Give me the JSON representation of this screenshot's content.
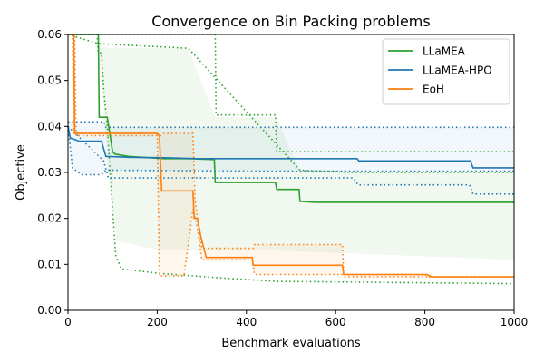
{
  "chart_data": {
    "type": "line",
    "title": "Convergence on Bin Packing problems",
    "xlabel": "Benchmark evaluations",
    "ylabel": "Objective",
    "xlim": [
      0,
      1000
    ],
    "ylim": [
      0,
      0.06
    ],
    "xticks": [
      "0",
      "200",
      "400",
      "600",
      "800",
      "1000"
    ],
    "yticks": [
      "0.00",
      "0.01",
      "0.02",
      "0.03",
      "0.04",
      "0.05",
      "0.06"
    ],
    "grid": false,
    "legend_position": "top-right",
    "series": [
      {
        "name": "LLaMEA",
        "color": "#2ca02c",
        "mean": [
          [
            0,
            0.06
          ],
          [
            68,
            0.06
          ],
          [
            70,
            0.042
          ],
          [
            88,
            0.042
          ],
          [
            100,
            0.0345
          ],
          [
            105,
            0.034
          ],
          [
            135,
            0.0335
          ],
          [
            215,
            0.033
          ],
          [
            270,
            0.033
          ],
          [
            328,
            0.0328
          ],
          [
            330,
            0.0278
          ],
          [
            465,
            0.0278
          ],
          [
            468,
            0.0263
          ],
          [
            518,
            0.0263
          ],
          [
            520,
            0.0237
          ],
          [
            555,
            0.0235
          ],
          [
            1000,
            0.0235
          ]
        ],
        "upper": [
          [
            0,
            0.06
          ],
          [
            330,
            0.06
          ],
          [
            332,
            0.0425
          ],
          [
            465,
            0.0425
          ],
          [
            468,
            0.0345
          ],
          [
            1000,
            0.0345
          ]
        ],
        "lower": [
          [
            0,
            0.06
          ],
          [
            65,
            0.06
          ],
          [
            68,
            0.056
          ],
          [
            75,
            0.056
          ],
          [
            80,
            0.048
          ],
          [
            88,
            0.04
          ],
          [
            100,
            0.022
          ],
          [
            107,
            0.012
          ],
          [
            120,
            0.009
          ],
          [
            210,
            0.008
          ],
          [
            350,
            0.007
          ],
          [
            470,
            0.0063
          ],
          [
            1000,
            0.0058
          ]
        ],
        "upper2": [
          [
            0,
            0.06
          ],
          [
            68,
            0.058
          ],
          [
            270,
            0.057
          ],
          [
            520,
            0.0305
          ],
          [
            640,
            0.03
          ],
          [
            1000,
            0.03
          ]
        ],
        "band": [
          [
            0,
            0.06
          ],
          [
            68,
            0.058
          ],
          [
            90,
            0.057
          ],
          [
            270,
            0.057
          ],
          [
            330,
            0.042
          ],
          [
            465,
            0.042
          ],
          [
            520,
            0.0305
          ],
          [
            1000,
            0.03
          ]
        ],
        "band_low": [
          [
            0,
            0.06
          ],
          [
            68,
            0.058
          ],
          [
            90,
            0.03
          ],
          [
            110,
            0.015
          ],
          [
            210,
            0.013
          ],
          [
            350,
            0.013
          ],
          [
            470,
            0.013
          ],
          [
            1000,
            0.011
          ]
        ]
      },
      {
        "name": "LLaMEA-HPO",
        "color": "#1f77b4",
        "mean": [
          [
            0,
            0.04
          ],
          [
            5,
            0.0375
          ],
          [
            25,
            0.0368
          ],
          [
            75,
            0.0368
          ],
          [
            85,
            0.0335
          ],
          [
            135,
            0.0333
          ],
          [
            215,
            0.0332
          ],
          [
            290,
            0.033
          ],
          [
            648,
            0.033
          ],
          [
            652,
            0.0325
          ],
          [
            902,
            0.0325
          ],
          [
            908,
            0.031
          ],
          [
            1000,
            0.031
          ]
        ],
        "upper": [
          [
            0,
            0.041
          ],
          [
            80,
            0.041
          ],
          [
            85,
            0.0398
          ],
          [
            1000,
            0.0398
          ]
        ],
        "lower": [
          [
            0,
            0.04
          ],
          [
            10,
            0.031
          ],
          [
            30,
            0.0295
          ],
          [
            75,
            0.0295
          ],
          [
            85,
            0.0305
          ],
          [
            400,
            0.0303
          ],
          [
            1000,
            0.0303
          ]
        ],
        "lower2": [
          [
            0,
            0.04
          ],
          [
            80,
            0.0325
          ],
          [
            90,
            0.0288
          ],
          [
            640,
            0.0288
          ],
          [
            650,
            0.0273
          ],
          [
            900,
            0.0273
          ],
          [
            908,
            0.0253
          ],
          [
            1000,
            0.0253
          ]
        ]
      },
      {
        "name": "EoH",
        "color": "#ff7f0e",
        "mean": [
          [
            0,
            0.06
          ],
          [
            13,
            0.06
          ],
          [
            15,
            0.0385
          ],
          [
            200,
            0.0385
          ],
          [
            205,
            0.038
          ],
          [
            210,
            0.026
          ],
          [
            280,
            0.026
          ],
          [
            283,
            0.02
          ],
          [
            290,
            0.02
          ],
          [
            298,
            0.016
          ],
          [
            310,
            0.0115
          ],
          [
            413,
            0.0115
          ],
          [
            415,
            0.0098
          ],
          [
            615,
            0.0098
          ],
          [
            618,
            0.0078
          ],
          [
            805,
            0.0078
          ],
          [
            815,
            0.0073
          ],
          [
            1000,
            0.0073
          ]
        ],
        "upper": [
          [
            0,
            0.06
          ],
          [
            15,
            0.06
          ],
          [
            18,
            0.038
          ],
          [
            210,
            0.038
          ],
          [
            215,
            0.0385
          ],
          [
            280,
            0.0385
          ],
          [
            285,
            0.024
          ],
          [
            300,
            0.0135
          ],
          [
            415,
            0.0135
          ],
          [
            418,
            0.0143
          ],
          [
            615,
            0.0143
          ],
          [
            618,
            0.0078
          ],
          [
            800,
            0.0078
          ],
          [
            808,
            0.0073
          ],
          [
            1000,
            0.0073
          ]
        ],
        "lower": [
          [
            0,
            0.06
          ],
          [
            10,
            0.06
          ],
          [
            13,
            0.0385
          ],
          [
            200,
            0.0385
          ],
          [
            205,
            0.0075
          ],
          [
            260,
            0.0075
          ],
          [
            280,
            0.022
          ],
          [
            290,
            0.018
          ],
          [
            300,
            0.011
          ],
          [
            413,
            0.011
          ],
          [
            418,
            0.0078
          ],
          [
            615,
            0.0078
          ],
          [
            620,
            0.0073
          ],
          [
            1000,
            0.0073
          ]
        ]
      }
    ]
  }
}
